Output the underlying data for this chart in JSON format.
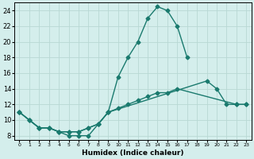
{
  "xlabel": "Humidex (Indice chaleur)",
  "background_color": "#d4eeec",
  "grid_color": "#b8d8d4",
  "line_color": "#1a7a6e",
  "xlim": [
    -0.5,
    23.5
  ],
  "ylim": [
    7.5,
    25
  ],
  "xticks": [
    0,
    1,
    2,
    3,
    4,
    5,
    6,
    7,
    8,
    9,
    10,
    11,
    12,
    13,
    14,
    15,
    16,
    17,
    18,
    19,
    20,
    21,
    22,
    23
  ],
  "yticks": [
    8,
    10,
    12,
    14,
    16,
    18,
    20,
    22,
    24
  ],
  "line1": {
    "x": [
      0,
      1,
      2,
      3,
      4,
      5,
      6,
      7,
      8,
      9,
      10,
      11,
      12,
      13,
      14,
      15,
      16,
      17
    ],
    "y": [
      11,
      10,
      9,
      9,
      8.5,
      8,
      8,
      8,
      9.5,
      11,
      15.5,
      18,
      20,
      23,
      24.5,
      24,
      22,
      18
    ]
  },
  "line2": {
    "x": [
      0,
      1,
      2,
      3,
      4,
      5,
      6,
      7,
      8,
      9,
      19,
      20,
      21,
      22,
      23
    ],
    "y": [
      11,
      10,
      9,
      9,
      8.5,
      8.5,
      8.5,
      9,
      9.5,
      11,
      15,
      14,
      12,
      12,
      12
    ]
  },
  "line3": {
    "x": [
      0,
      1,
      2,
      3,
      4,
      5,
      6,
      7,
      8,
      9,
      10,
      11,
      12,
      13,
      14,
      15,
      16,
      22,
      23
    ],
    "y": [
      11,
      10,
      9,
      9,
      8.5,
      8.5,
      8.5,
      9,
      9.5,
      11,
      11.5,
      12,
      12.5,
      13,
      13.5,
      13.5,
      14,
      12,
      12
    ]
  }
}
